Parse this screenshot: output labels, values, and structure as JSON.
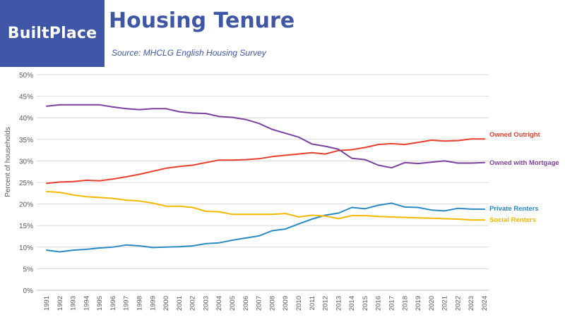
{
  "brand": {
    "logo_text": "BuiltPlace"
  },
  "header": {
    "title": "Housing Tenure",
    "subtitle": "Source: MHCLG English Housing Survey"
  },
  "colors": {
    "brand": "#3f56a6",
    "owned_outright": "#e8402e",
    "owned_with_mortgage": "#7b3fa0",
    "private_renters": "#2a8ac4",
    "social_renters": "#f5b800",
    "grid": "#d9d9d9",
    "axis_text": "#595959"
  },
  "chart_data": {
    "type": "line",
    "ylabel": "Percent of households",
    "ylim": [
      0,
      50
    ],
    "yticks": [
      "0%",
      "5%",
      "10%",
      "15%",
      "20%",
      "25%",
      "30%",
      "35%",
      "40%",
      "45%",
      "50%"
    ],
    "grid": true,
    "legend": "inline labels at right end of lines",
    "x": [
      "1991",
      "1992",
      "1993",
      "1994",
      "1995",
      "1996",
      "1997",
      "1998",
      "1999",
      "2000",
      "2001",
      "2002",
      "2003",
      "2004",
      "2005",
      "2006",
      "2007",
      "2008",
      "2009",
      "2010",
      "2011",
      "2012",
      "2013",
      "2014",
      "2015",
      "2016",
      "2017",
      "2018",
      "2019",
      "2020",
      "2021",
      "2022",
      "2023",
      "2024"
    ],
    "series": [
      {
        "name": "Owned Outright",
        "color": "#e8402e",
        "values": [
          24.8,
          25.1,
          25.2,
          25.5,
          25.4,
          25.8,
          26.3,
          26.9,
          27.6,
          28.3,
          28.7,
          29.0,
          29.6,
          30.2,
          30.2,
          30.3,
          30.5,
          31.0,
          31.3,
          31.6,
          31.9,
          31.6,
          32.4,
          32.6,
          33.1,
          33.8,
          34.0,
          33.8,
          34.3,
          34.8,
          34.6,
          34.7,
          35.1,
          35.1
        ]
      },
      {
        "name": "Owned with Mortgage",
        "color": "#7b3fa0",
        "values": [
          42.7,
          43.0,
          43.0,
          43.0,
          43.0,
          42.5,
          42.1,
          41.9,
          42.1,
          42.1,
          41.4,
          41.1,
          41.0,
          40.3,
          40.1,
          39.6,
          38.7,
          37.3,
          36.4,
          35.5,
          33.9,
          33.4,
          32.7,
          30.6,
          30.3,
          29.0,
          28.4,
          29.6,
          29.4,
          29.7,
          30.0,
          29.5,
          29.5,
          29.6
        ]
      },
      {
        "name": "Private Renters",
        "color": "#2a8ac4",
        "values": [
          9.3,
          8.9,
          9.3,
          9.5,
          9.8,
          10.0,
          10.5,
          10.3,
          9.9,
          10.0,
          10.1,
          10.3,
          10.8,
          11.0,
          11.6,
          12.1,
          12.6,
          13.8,
          14.2,
          15.4,
          16.5,
          17.4,
          17.9,
          19.2,
          18.9,
          19.7,
          20.2,
          19.3,
          19.2,
          18.6,
          18.4,
          19.0,
          18.8,
          18.8
        ]
      },
      {
        "name": "Social Renters",
        "color": "#f5b800",
        "values": [
          22.9,
          22.7,
          22.1,
          21.7,
          21.5,
          21.3,
          20.9,
          20.7,
          20.2,
          19.5,
          19.5,
          19.2,
          18.3,
          18.2,
          17.6,
          17.6,
          17.6,
          17.6,
          17.8,
          17.0,
          17.4,
          17.2,
          16.6,
          17.3,
          17.3,
          17.1,
          17.0,
          16.9,
          16.8,
          16.7,
          16.6,
          16.5,
          16.3,
          16.3
        ]
      }
    ]
  }
}
